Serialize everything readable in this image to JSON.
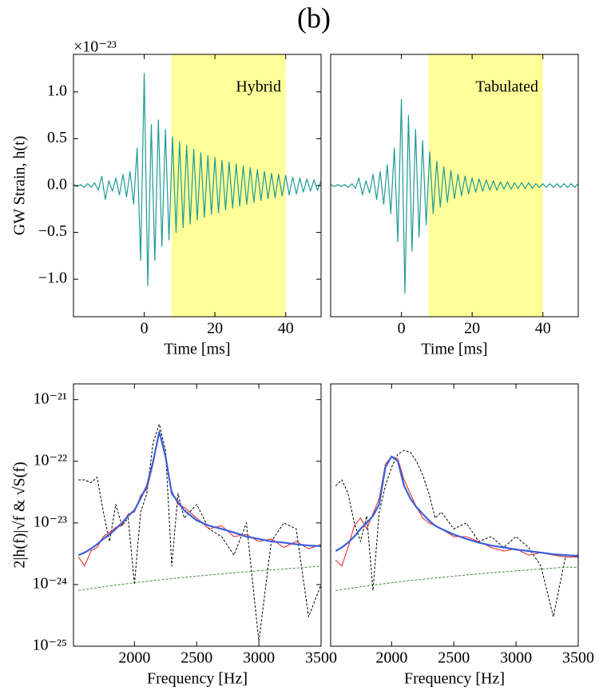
{
  "figure_title": "(b)",
  "chart_data": [
    {
      "type": "line",
      "xlabel": "Time [ms]",
      "ylabel": "GW Strain, h(t)",
      "offset_text": "×10⁻²³",
      "annotation": "Hybrid",
      "xlim": [
        -20,
        50
      ],
      "ylim": [
        -1.4,
        1.4
      ],
      "xticks": [
        0,
        20,
        40
      ],
      "yticks": [
        {
          "value": -1,
          "label": "−1.0"
        },
        {
          "value": -0.5,
          "label": "−0.5"
        },
        {
          "value": 0,
          "label": "0.0"
        },
        {
          "value": 0.5,
          "label": "0.5"
        },
        {
          "value": 1,
          "label": "1.0"
        }
      ],
      "span": [
        7.7,
        40
      ],
      "span_color": "#ffff99",
      "x": [
        -20,
        -19,
        -18,
        -17,
        -16,
        -15,
        -14,
        -13,
        -12,
        -11,
        -10,
        -9,
        -8,
        -7,
        -6,
        -5,
        -4,
        -3,
        -2,
        -1,
        0,
        1,
        2,
        3,
        4,
        5,
        6,
        7,
        8,
        9,
        10,
        11,
        12,
        13,
        14,
        15,
        16,
        17,
        18,
        19,
        20,
        21,
        22,
        23,
        24,
        25,
        26,
        27,
        28,
        29,
        30,
        31,
        32,
        33,
        34,
        35,
        36,
        37,
        38,
        39,
        40,
        41,
        42,
        43,
        44,
        45,
        46,
        47,
        48,
        49,
        50
      ],
      "series": [
        {
          "color": "#1f9a94",
          "width": 1.2,
          "values": [
            0.01,
            -0.01,
            0.01,
            -0.02,
            0.02,
            -0.02,
            0.03,
            -0.05,
            0.1,
            -0.15,
            0.05,
            -0.06,
            0.08,
            -0.1,
            0.12,
            -0.12,
            0.15,
            -0.2,
            0.4,
            -0.8,
            1.2,
            -1.07,
            0.65,
            -0.8,
            0.7,
            -0.65,
            0.6,
            -0.58,
            0.52,
            -0.5,
            0.47,
            -0.45,
            0.43,
            -0.41,
            0.39,
            -0.37,
            0.35,
            -0.34,
            0.32,
            -0.31,
            0.3,
            -0.29,
            0.27,
            -0.26,
            0.25,
            -0.24,
            0.23,
            -0.22,
            0.21,
            -0.2,
            0.19,
            -0.18,
            0.17,
            -0.16,
            0.15,
            -0.14,
            0.13,
            -0.13,
            0.12,
            -0.11,
            0.11,
            -0.1,
            0.09,
            -0.09,
            0.08,
            -0.07,
            0.07,
            -0.06,
            0.06,
            -0.05,
            0.05
          ]
        }
      ]
    },
    {
      "type": "line",
      "xlabel": "Time [ms]",
      "annotation": "Tabulated",
      "xlim": [
        -20,
        50
      ],
      "ylim": [
        -1.4,
        1.4
      ],
      "xticks": [
        0,
        20,
        40
      ],
      "span": [
        7.7,
        40
      ],
      "span_color": "#ffff99",
      "x": [
        -20,
        -19,
        -18,
        -17,
        -16,
        -15,
        -14,
        -13,
        -12,
        -11,
        -10,
        -9,
        -8,
        -7,
        -6,
        -5,
        -4,
        -3,
        -2,
        -1,
        0,
        1,
        2,
        3,
        4,
        5,
        6,
        7,
        8,
        9,
        10,
        11,
        12,
        13,
        14,
        15,
        16,
        17,
        18,
        19,
        20,
        21,
        22,
        23,
        24,
        25,
        26,
        27,
        28,
        29,
        30,
        31,
        32,
        33,
        34,
        35,
        36,
        37,
        38,
        39,
        40,
        41,
        42,
        43,
        44,
        45,
        46,
        47,
        48,
        49,
        50
      ],
      "series": [
        {
          "color": "#1f9a94",
          "width": 1.2,
          "values": [
            0.01,
            -0.01,
            0.01,
            -0.01,
            0.01,
            -0.02,
            0.02,
            -0.03,
            0.08,
            -0.1,
            0.05,
            -0.08,
            0.12,
            -0.15,
            0.15,
            -0.2,
            0.22,
            -0.3,
            0.4,
            -0.6,
            0.92,
            -1.15,
            0.75,
            -0.7,
            0.6,
            -0.55,
            0.48,
            -0.42,
            0.36,
            -0.3,
            0.26,
            -0.23,
            0.2,
            -0.18,
            0.16,
            -0.14,
            0.12,
            -0.11,
            0.1,
            -0.09,
            0.08,
            -0.07,
            0.07,
            -0.06,
            0.06,
            -0.05,
            0.05,
            -0.05,
            0.04,
            -0.04,
            0.04,
            -0.04,
            0.03,
            -0.03,
            0.03,
            -0.03,
            0.03,
            -0.03,
            0.02,
            -0.02,
            0.02,
            -0.02,
            0.02,
            -0.02,
            0.02,
            -0.02,
            0.02,
            -0.02,
            0.02,
            -0.02,
            0.02
          ]
        }
      ]
    },
    {
      "type": "line",
      "xlabel": "Frequency [Hz]",
      "ylabel": "2|h(f)|√f & √S(f)",
      "yscale": "log",
      "xlim": [
        1510,
        3500
      ],
      "ylim": [
        1e-25,
        1.8e-21
      ],
      "xticks": [
        2000,
        2500,
        3000,
        3500
      ],
      "yticks": [
        {
          "value": 1e-25,
          "label": "10⁻²⁵"
        },
        {
          "value": 1e-24,
          "label": "10⁻²⁴"
        },
        {
          "value": 1e-23,
          "label": "10⁻²³"
        },
        {
          "value": 1e-22,
          "label": "10⁻²²"
        },
        {
          "value": 1e-21,
          "label": "10⁻²¹"
        }
      ],
      "x": [
        1550,
        1600,
        1650,
        1700,
        1750,
        1800,
        1850,
        1900,
        1950,
        2000,
        2050,
        2100,
        2150,
        2200,
        2250,
        2300,
        2350,
        2400,
        2500,
        2600,
        2700,
        2800,
        2900,
        3000,
        3100,
        3200,
        3300,
        3400,
        3500
      ],
      "series": [
        {
          "color": "#000000",
          "width": 1,
          "dash": "3,2",
          "values": [
            5e-23,
            5e-23,
            4.5e-23,
            5.5e-23,
            1.5e-23,
            5e-24,
            2e-23,
            9e-24,
            1.2e-23,
            1e-24,
            1.5e-23,
            3e-23,
            2e-22,
            4e-22,
            1.5e-22,
            2e-24,
            3e-23,
            1.2e-23,
            2e-23,
            8e-24,
            6e-24,
            3e-24,
            1e-23,
            1.2e-25,
            5e-24,
            1e-23,
            8e-24,
            3e-25,
            1e-24
          ]
        },
        {
          "color": "#e8231f",
          "width": 1,
          "values": [
            2.8e-24,
            2e-24,
            3.5e-24,
            4e-24,
            6e-24,
            7e-24,
            8.5e-24,
            9e-24,
            1.4e-23,
            1.5e-23,
            2.8e-23,
            3.5e-23,
            9e-23,
            3.2e-22,
            1.1e-22,
            3.3e-23,
            2e-23,
            1.8e-23,
            1.2e-23,
            8e-24,
            9e-24,
            6e-24,
            6.5e-24,
            5e-24,
            5.5e-24,
            4e-24,
            5e-24,
            3.8e-24,
            4.5e-24
          ]
        },
        {
          "color": "#3a5fd8",
          "width": 2.2,
          "values": [
            3e-24,
            3.3e-24,
            3.8e-24,
            4.5e-24,
            5.5e-24,
            6.5e-24,
            8e-24,
            1e-23,
            1.3e-23,
            1.6e-23,
            2.5e-23,
            4e-23,
            1e-22,
            3e-22,
            1.2e-22,
            3e-23,
            2.2e-23,
            1.6e-23,
            1.1e-23,
            9e-24,
            8e-24,
            7e-24,
            6e-24,
            5.5e-24,
            5e-24,
            4.8e-24,
            4.5e-24,
            4.3e-24,
            4.2e-24
          ]
        },
        {
          "color": "#3c8a3c",
          "width": 1,
          "dash": "3,2",
          "values": [
            8e-25,
            8.3e-25,
            8.6e-25,
            8.9e-25,
            9.2e-25,
            9.5e-25,
            9.8e-25,
            1.01e-24,
            1.04e-24,
            1.07e-24,
            1.1e-24,
            1.13e-24,
            1.16e-24,
            1.19e-24,
            1.22e-24,
            1.25e-24,
            1.28e-24,
            1.31e-24,
            1.37e-24,
            1.43e-24,
            1.49e-24,
            1.55e-24,
            1.61e-24,
            1.67e-24,
            1.73e-24,
            1.79e-24,
            1.85e-24,
            1.92e-24,
            2e-24
          ]
        }
      ]
    },
    {
      "type": "line",
      "xlabel": "Frequency [Hz]",
      "yscale": "log",
      "xlim": [
        1510,
        3500
      ],
      "ylim": [
        1e-25,
        1.8e-21
      ],
      "xticks": [
        2000,
        2500,
        3000,
        3500
      ],
      "x": [
        1550,
        1600,
        1650,
        1700,
        1750,
        1800,
        1850,
        1900,
        1950,
        2000,
        2050,
        2100,
        2150,
        2200,
        2250,
        2300,
        2350,
        2400,
        2500,
        2600,
        2700,
        2800,
        2900,
        3000,
        3100,
        3200,
        3300,
        3400,
        3500
      ],
      "series": [
        {
          "color": "#000000",
          "width": 1,
          "dash": "3,2",
          "values": [
            4e-23,
            5e-23,
            3e-23,
            1e-23,
            5e-24,
            1.3e-23,
            8e-25,
            1.5e-23,
            4e-23,
            8e-23,
            1.3e-22,
            1.5e-22,
            1.4e-22,
            1e-22,
            6e-23,
            3e-23,
            1.2e-23,
            1.5e-23,
            8e-24,
            1e-23,
            5e-24,
            6e-24,
            4e-24,
            6e-24,
            4e-24,
            2e-24,
            3e-25,
            3e-24,
            3e-24
          ]
        },
        {
          "color": "#e8231f",
          "width": 1,
          "values": [
            2.5e-24,
            2e-24,
            4e-24,
            9e-24,
            1.2e-23,
            8e-24,
            1.4e-23,
            2.5e-23,
            9e-23,
            1.2e-22,
            1.1e-22,
            5e-23,
            3e-23,
            1.8e-23,
            1.2e-23,
            1e-23,
            9e-24,
            8e-24,
            6e-24,
            6e-24,
            5e-24,
            4e-24,
            3.5e-24,
            3.8e-24,
            3e-24,
            3.3e-24,
            3e-24,
            2.8e-24,
            2.8e-24
          ]
        },
        {
          "color": "#3a5fd8",
          "width": 2.2,
          "values": [
            3.5e-24,
            4e-24,
            4.8e-24,
            6e-24,
            8e-24,
            1e-23,
            1.3e-23,
            2e-23,
            8e-23,
            1.2e-22,
            1e-22,
            4e-23,
            2.5e-23,
            1.8e-23,
            1.4e-23,
            1.1e-23,
            9e-24,
            8e-24,
            6.5e-24,
            5.5e-24,
            4.8e-24,
            4.3e-24,
            4e-24,
            3.7e-24,
            3.5e-24,
            3.3e-24,
            3.1e-24,
            3e-24,
            2.9e-24
          ]
        },
        {
          "color": "#3c8a3c",
          "width": 1,
          "dash": "3,2",
          "values": [
            8e-25,
            8.3e-25,
            8.6e-25,
            8.9e-25,
            9.2e-25,
            9.5e-25,
            9.8e-25,
            1.01e-24,
            1.04e-24,
            1.07e-24,
            1.1e-24,
            1.13e-24,
            1.16e-24,
            1.19e-24,
            1.22e-24,
            1.25e-24,
            1.28e-24,
            1.31e-24,
            1.37e-24,
            1.43e-24,
            1.49e-24,
            1.55e-24,
            1.61e-24,
            1.67e-24,
            1.73e-24,
            1.79e-24,
            1.85e-24,
            1.92e-24,
            1.9e-24
          ]
        }
      ]
    }
  ]
}
